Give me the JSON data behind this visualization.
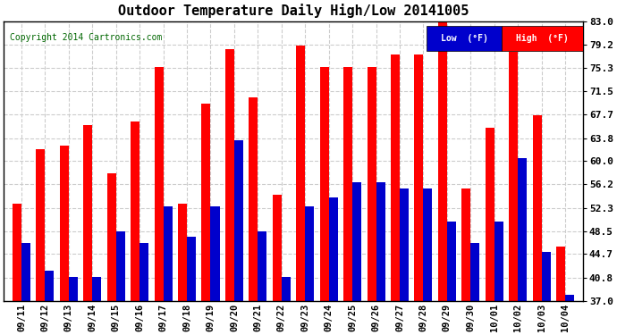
{
  "title": "Outdoor Temperature Daily High/Low 20141005",
  "copyright": "Copyright 2014 Cartronics.com",
  "dates": [
    "09/11",
    "09/12",
    "09/13",
    "09/14",
    "09/15",
    "09/16",
    "09/17",
    "09/18",
    "09/19",
    "09/20",
    "09/21",
    "09/22",
    "09/23",
    "09/24",
    "09/25",
    "09/26",
    "09/27",
    "09/28",
    "09/29",
    "09/30",
    "10/01",
    "10/02",
    "10/03",
    "10/04"
  ],
  "highs": [
    53.0,
    62.0,
    62.5,
    66.0,
    58.0,
    66.5,
    75.5,
    53.0,
    69.5,
    78.5,
    70.5,
    54.5,
    79.0,
    75.5,
    75.5,
    75.5,
    77.5,
    77.5,
    83.0,
    55.5,
    65.5,
    78.0,
    67.5,
    46.0
  ],
  "lows": [
    46.5,
    42.0,
    41.0,
    41.0,
    48.5,
    46.5,
    52.5,
    47.5,
    52.5,
    63.5,
    48.5,
    41.0,
    52.5,
    54.0,
    56.5,
    56.5,
    55.5,
    55.5,
    50.0,
    46.5,
    50.0,
    60.5,
    45.0,
    38.0
  ],
  "high_color": "#ff0000",
  "low_color": "#0000cc",
  "ylim_min": 37.0,
  "ylim_max": 83.0,
  "yticks": [
    37.0,
    40.8,
    44.7,
    48.5,
    52.3,
    56.2,
    60.0,
    63.8,
    67.7,
    71.5,
    75.3,
    79.2,
    83.0
  ],
  "background_color": "#ffffff",
  "grid_color": "#cccccc",
  "bar_width": 0.38
}
